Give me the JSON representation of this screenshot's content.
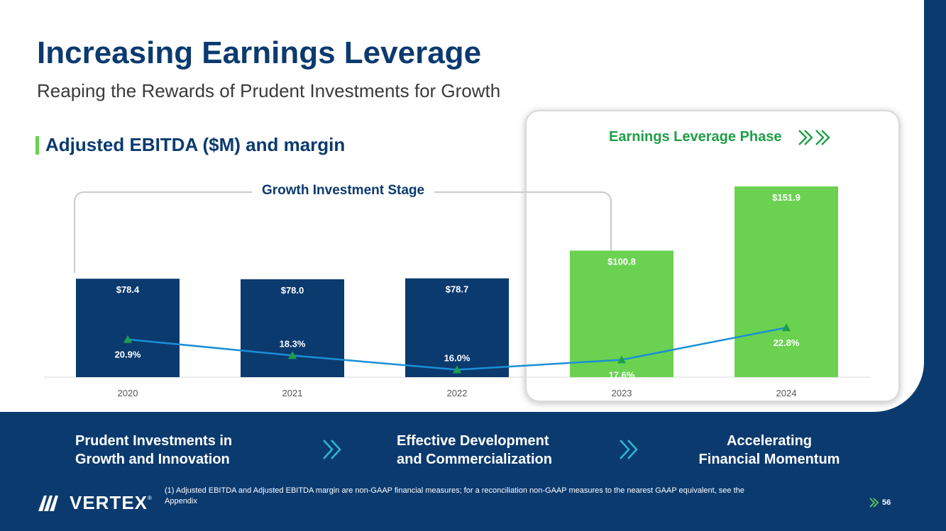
{
  "title": "Increasing Earnings Leverage",
  "subtitle": "Reaping the Rewards of Prudent Investments for Growth",
  "section_title": "Adjusted EBITDA ($M) and margin",
  "phase_label": "Earnings Leverage Phase",
  "stage_label": "Growth Investment Stage",
  "colors": {
    "navy": "#0b3a6f",
    "green_bar": "#6ad250",
    "line": "#1b8fd6",
    "marker": "#1f9e47",
    "phase_text": "#1f9e47",
    "footer_arrow": "#2bb6d6"
  },
  "chart_data": {
    "type": "bar",
    "title": "Adjusted EBITDA ($M) and margin",
    "categories": [
      "2020",
      "2021",
      "2022",
      "2023",
      "2024"
    ],
    "series": [
      {
        "name": "Adjusted EBITDA ($M)",
        "type": "bar",
        "values": [
          78.4,
          78.0,
          78.7,
          100.8,
          151.9
        ],
        "labels": [
          "$78.4",
          "$78.0",
          "$78.7",
          "$100.8",
          "$151.9"
        ],
        "colors": [
          "#0b3a6f",
          "#0b3a6f",
          "#0b3a6f",
          "#6ad250",
          "#6ad250"
        ]
      },
      {
        "name": "Adjusted EBITDA margin (%)",
        "type": "line",
        "values": [
          20.9,
          18.3,
          16.0,
          17.6,
          22.8
        ],
        "labels": [
          "20.9%",
          "18.3%",
          "16.0%",
          "17.6%",
          "22.8%"
        ]
      }
    ],
    "ylim": [
      0,
      155
    ],
    "margin_ylim": [
      14.8,
      37.7
    ],
    "grid": false,
    "xlabel": "",
    "ylabel": ""
  },
  "footer": {
    "items": [
      "Prudent Investments in\nGrowth and Innovation",
      "Effective Development\nand Commercialization",
      "Accelerating\nFinancial Momentum"
    ],
    "logo_text": "VERTEX",
    "logo_reg": "®",
    "footnote": "(1) Adjusted EBITDA and Adjusted EBITDA margin are non-GAAP financial measures; for a reconciliation non-GAAP measures to the nearest GAAP equivalent, see the Appendix",
    "page_number": "56"
  }
}
